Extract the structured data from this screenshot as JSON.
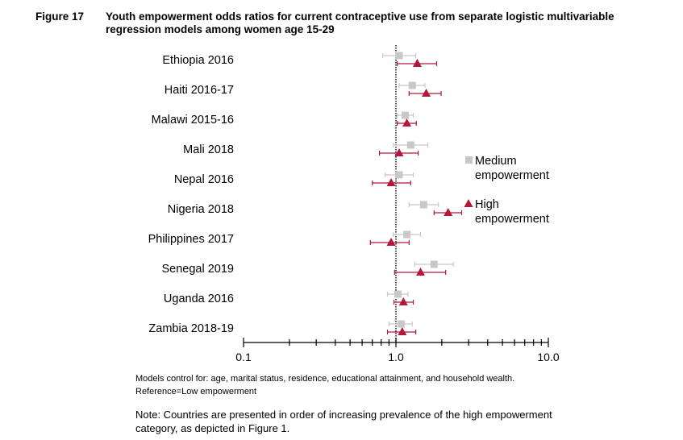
{
  "figure": {
    "label": "Figure 17",
    "title": "Youth empowerment odds ratios for current contraceptive use from separate logistic multivariable regression models among women age 15-29"
  },
  "notes": {
    "models_control": "Models control for: age, marital status, residence, educational attainment, and household wealth.",
    "reference": "Reference=Low empowerment",
    "note": "Note: Countries are presented in order of increasing prevalence of the high empowerment category, as depicted in Figure 1."
  },
  "colors": {
    "medium": "#c8c8c8",
    "high": "#b5163b",
    "axis": "#000000"
  },
  "chart_data": {
    "type": "scatter",
    "subtype": "forest-plot",
    "x_scale": "log",
    "xlim": [
      0.1,
      10.0
    ],
    "x_tick_labels": [
      "0.1",
      "1.0",
      "10.0"
    ],
    "reference_line": 1.0,
    "legend_position": "right",
    "categories": [
      "Ethiopia 2016",
      "Haiti 2016-17",
      "Malawi 2015-16",
      "Mali 2018",
      "Nepal 2016",
      "Nigeria 2018",
      "Philippines 2017",
      "Senegal 2019",
      "Uganda 2016",
      "Zambia 2018-19"
    ],
    "series": [
      {
        "name": "Medium empowerment",
        "legend_lines": [
          "Medium",
          "empowerment"
        ],
        "marker": "square",
        "values": [
          1.05,
          1.28,
          1.15,
          1.25,
          1.05,
          1.52,
          1.18,
          1.78,
          1.03,
          1.08
        ],
        "ci_low": [
          0.82,
          1.05,
          1.02,
          0.96,
          0.85,
          1.22,
          0.96,
          1.33,
          0.88,
          0.9
        ],
        "ci_high": [
          1.35,
          1.55,
          1.3,
          1.62,
          1.3,
          1.9,
          1.45,
          2.38,
          1.2,
          1.28
        ]
      },
      {
        "name": "High empowerment",
        "legend_lines": [
          "High",
          "empowerment"
        ],
        "marker": "triangle",
        "values": [
          1.38,
          1.58,
          1.18,
          1.05,
          0.93,
          2.2,
          0.93,
          1.45,
          1.12,
          1.1
        ],
        "ci_low": [
          1.02,
          1.22,
          1.02,
          0.78,
          0.7,
          1.78,
          0.68,
          0.98,
          0.97,
          0.88
        ],
        "ci_high": [
          1.85,
          1.98,
          1.36,
          1.4,
          1.25,
          2.7,
          1.22,
          2.12,
          1.3,
          1.35
        ]
      }
    ]
  }
}
